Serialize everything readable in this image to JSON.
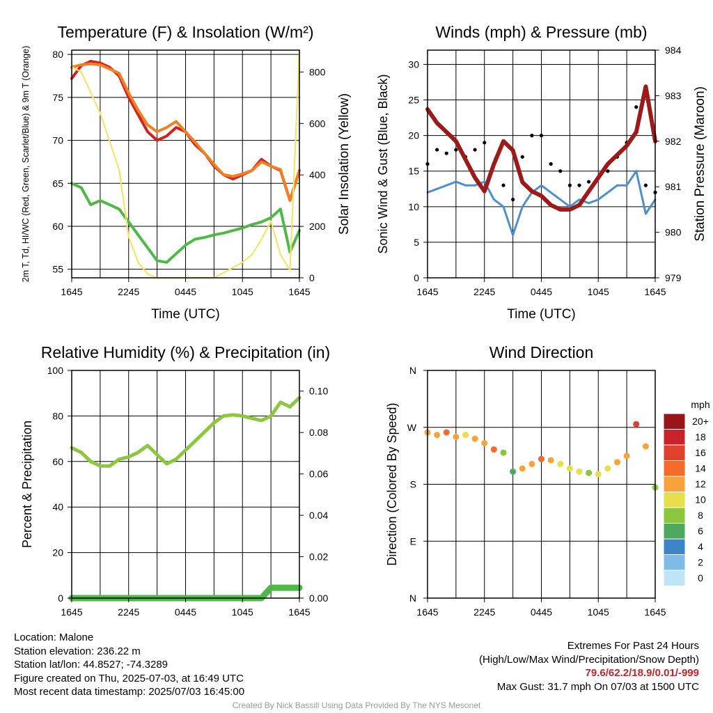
{
  "chart_data": [
    {
      "type": "line",
      "title": "Temperature (F) & Insolation (W/m²)",
      "xlabel": "Time (UTC)",
      "ylabel_left": "2m T, Td, HI/WC (Red, Green, Scarlet/Blue) & 9m T (Orange)",
      "ylabel_right": "Solar Insolation (Yellow)",
      "x_ticks": [
        "1645",
        "2245",
        "0445",
        "1045",
        "1645"
      ],
      "ylim_left": [
        54,
        80.5
      ],
      "y_ticks_left": [
        55,
        60,
        65,
        70,
        75,
        80
      ],
      "ylim_right": [
        0,
        885
      ],
      "y_ticks_right": [
        0,
        200,
        400,
        600,
        800
      ],
      "x_hours": [
        0,
        1,
        2,
        3,
        4,
        5,
        6,
        7,
        8,
        9,
        10,
        11,
        12,
        13,
        14,
        15,
        16,
        17,
        18,
        19,
        20,
        21,
        22,
        23,
        24
      ],
      "series": [
        {
          "name": "2m T",
          "color": "#d42020",
          "axis": "left",
          "values": [
            77.2,
            78.7,
            79.2,
            79.0,
            78.5,
            77.5,
            75.0,
            73.0,
            71.0,
            70.0,
            70.5,
            71.5,
            71.0,
            69.5,
            68.5,
            67.0,
            66.0,
            65.5,
            66.0,
            66.5,
            67.8,
            67.0,
            66.5,
            63.0,
            66.5
          ]
        },
        {
          "name": "9m T",
          "color": "#f08020",
          "axis": "left",
          "values": [
            78.5,
            78.8,
            78.9,
            78.8,
            78.3,
            77.8,
            75.5,
            73.5,
            71.8,
            71.0,
            71.5,
            72.2,
            71.0,
            69.8,
            68.5,
            67.2,
            66.0,
            65.8,
            66.1,
            66.5,
            67.5,
            67.0,
            66.6,
            63.0,
            66.5
          ]
        },
        {
          "name": "Td",
          "color": "#4fb948",
          "axis": "left",
          "values": [
            65.0,
            64.5,
            62.5,
            63.0,
            62.5,
            62.0,
            60.5,
            59.0,
            57.5,
            56.0,
            55.8,
            56.8,
            57.8,
            58.5,
            58.7,
            59.0,
            59.2,
            59.5,
            59.8,
            60.2,
            60.5,
            61.0,
            62.0,
            57.0,
            59.5
          ]
        },
        {
          "name": "Solar Insolation",
          "color": "#f7e36a",
          "axis": "right",
          "values": [
            820,
            800,
            720,
            640,
            530,
            420,
            160,
            60,
            15,
            0,
            0,
            0,
            0,
            0,
            0,
            0,
            20,
            40,
            60,
            90,
            150,
            220,
            90,
            30,
            880
          ]
        }
      ]
    },
    {
      "type": "line",
      "title": "Winds (mph) & Pressure (mb)",
      "xlabel": "Time (UTC)",
      "ylabel_left": "Sonic Wind & Gust (Blue, Black)",
      "ylabel_right": "Station Pressure (Maroon)",
      "x_ticks": [
        "1645",
        "2245",
        "0445",
        "1045",
        "1645"
      ],
      "ylim_left": [
        0,
        32
      ],
      "y_ticks_left": [
        0,
        5,
        10,
        15,
        20,
        25,
        30
      ],
      "ylim_right": [
        979,
        984
      ],
      "y_ticks_right": [
        979,
        980,
        981,
        982,
        983,
        984
      ],
      "x_hours": [
        0,
        1,
        2,
        3,
        4,
        5,
        6,
        7,
        8,
        9,
        10,
        11,
        12,
        13,
        14,
        15,
        16,
        17,
        18,
        19,
        20,
        21,
        22,
        23,
        24
      ],
      "series": [
        {
          "name": "Sonic Wind",
          "color": "#4a90d0",
          "axis": "left",
          "values": [
            12,
            12.5,
            13,
            13.5,
            13,
            13,
            13.5,
            11,
            10,
            6,
            10,
            12,
            13,
            12,
            11,
            10,
            11,
            10.5,
            11,
            12,
            13,
            13,
            15,
            9,
            11
          ]
        },
        {
          "name": "Sonic Gust",
          "color": "#000000",
          "axis": "left",
          "values": [
            16,
            18,
            17.5,
            18,
            17,
            18,
            19,
            16,
            13,
            11,
            17,
            20,
            20,
            16,
            15,
            13,
            13,
            13.5,
            14,
            15,
            17,
            19,
            24,
            13,
            12
          ]
        },
        {
          "name": "Station Pressure",
          "color": "#9c1a1a",
          "axis": "right",
          "values": [
            982.7,
            982.4,
            982.2,
            982.0,
            981.6,
            981.2,
            980.9,
            981.5,
            982.0,
            981.8,
            981.1,
            980.9,
            980.8,
            980.6,
            980.5,
            980.5,
            980.6,
            980.9,
            981.2,
            981.5,
            981.7,
            981.9,
            982.2,
            983.2,
            982.0
          ]
        }
      ]
    },
    {
      "type": "line",
      "title": "Relative Humidity (%) & Precipitation (in)",
      "xlabel": "",
      "ylabel_left": "Percent & Precipitation",
      "x_ticks": [
        "1645",
        "2245",
        "0445",
        "1045",
        "1645"
      ],
      "ylim_left": [
        0,
        100
      ],
      "y_ticks_left": [
        0,
        20,
        40,
        60,
        80,
        100
      ],
      "ylim_right": [
        0,
        0.11
      ],
      "y_ticks_right": [
        "0.00",
        "0.02",
        "0.04",
        "0.06",
        "0.08",
        "0.10"
      ],
      "x_hours": [
        0,
        1,
        2,
        3,
        4,
        5,
        6,
        7,
        8,
        9,
        10,
        11,
        12,
        13,
        14,
        15,
        16,
        17,
        18,
        19,
        20,
        21,
        22,
        23,
        24
      ],
      "series": [
        {
          "name": "Relative Humidity",
          "color": "#8dc63f",
          "axis": "left",
          "values": [
            66,
            64,
            60,
            58,
            58,
            61,
            62,
            64,
            67,
            63,
            59,
            61,
            65,
            69,
            73,
            77,
            80,
            80.5,
            80,
            79,
            78,
            80,
            86,
            84,
            88
          ]
        },
        {
          "name": "Precipitation",
          "color": "#4fb948",
          "axis": "right",
          "values": [
            0,
            0,
            0,
            0,
            0,
            0,
            0,
            0,
            0,
            0,
            0,
            0,
            0,
            0,
            0,
            0,
            0,
            0,
            0,
            0,
            0,
            0.005,
            0.005,
            0.005,
            0.005
          ]
        }
      ]
    },
    {
      "type": "scatter",
      "title": "Wind Direction",
      "ylabel_left": "Direction (Colored By Speed)",
      "x_ticks": [
        "1645",
        "2245",
        "0445",
        "1045",
        "1645"
      ],
      "y_tick_labels": [
        "N",
        "E",
        "S",
        "W",
        "N"
      ],
      "ylim_left": [
        0,
        360
      ],
      "legend_unit": "mph",
      "legend_labels": [
        "20+",
        "18",
        "16",
        "14",
        "12",
        "10",
        "8",
        "6",
        "4",
        "2",
        "0"
      ],
      "legend_colors": [
        "#98161a",
        "#c8232a",
        "#e0412b",
        "#f26b2a",
        "#f8a33a",
        "#e6de4a",
        "#8cc63f",
        "#4ea860",
        "#3d85c6",
        "#7fbbe9",
        "#c0e4f7"
      ],
      "x_hours": [
        0,
        1,
        2,
        3,
        4,
        5,
        6,
        7,
        8,
        9,
        10,
        11,
        12,
        13,
        14,
        15,
        16,
        17,
        18,
        19,
        20,
        21,
        22,
        23,
        24
      ],
      "directions": [
        262,
        258,
        262,
        255,
        258,
        252,
        245,
        235,
        230,
        200,
        205,
        212,
        220,
        218,
        212,
        205,
        200,
        198,
        196,
        205,
        215,
        225,
        275,
        240,
        175
      ],
      "speeds": [
        12,
        13,
        14,
        12,
        11,
        12,
        13,
        14,
        9,
        6,
        12,
        13,
        15,
        12,
        11,
        10,
        10,
        9,
        11,
        10,
        13,
        12,
        17,
        12,
        8
      ]
    }
  ],
  "info": {
    "location": "Location: Malone",
    "elevation": "Station elevation: 236.22 m",
    "latlon": "Station lat/lon: 44.8527; -74.3289",
    "created": "Figure created on Thu, 2025-07-03, at 16:49 UTC",
    "recent": "Most recent data timestamp: 2025/07/03 16:45:00"
  },
  "extremes": {
    "title": "Extremes For Past 24 Hours",
    "subtitle": "(High/Low/Max Wind/Precipitation/Snow Depth)",
    "values": "79.6/62.2/18.9/0.01/-999",
    "gust": "Max Gust: 31.7 mph On 07/03 at 1500 UTC"
  },
  "credit": "Created By Nick Bassill Using Data Provided By The NYS Mesonet"
}
